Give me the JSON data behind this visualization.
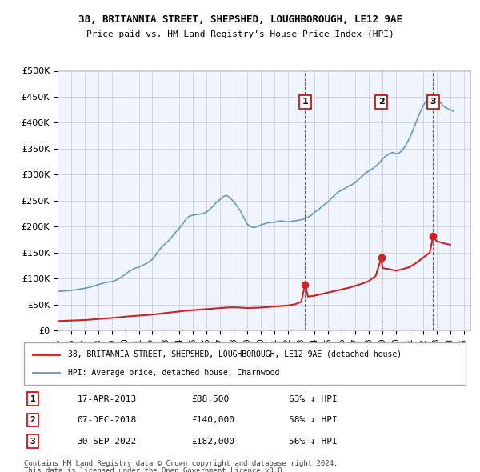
{
  "title1": "38, BRITANNIA STREET, SHEPSHED, LOUGHBOROUGH, LE12 9AE",
  "title2": "Price paid vs. HM Land Registry's House Price Index (HPI)",
  "ylabel_ticks": [
    "£0",
    "£50K",
    "£100K",
    "£150K",
    "£200K",
    "£250K",
    "£300K",
    "£350K",
    "£400K",
    "£450K",
    "£500K"
  ],
  "ylim": [
    0,
    500000
  ],
  "xlim_start": 1995.0,
  "xlim_end": 2025.5,
  "hpi_color": "#6699cc",
  "price_color": "#cc2222",
  "dashed_line_color": "#cc0000",
  "background_color": "#f0f4ff",
  "grid_color": "#cccccc",
  "legend_label_red": "38, BRITANNIA STREET, SHEPSHED, LOUGHBOROUGH, LE12 9AE (detached house)",
  "legend_label_blue": "HPI: Average price, detached house, Charnwood",
  "transactions": [
    {
      "id": 1,
      "date": "17-APR-2013",
      "price": 88500,
      "pct": "63%",
      "year": 2013.29
    },
    {
      "id": 2,
      "date": "07-DEC-2018",
      "price": 140000,
      "pct": "58%",
      "year": 2018.92
    },
    {
      "id": 3,
      "date": "30-SEP-2022",
      "price": 182000,
      "pct": "56%",
      "year": 2022.75
    }
  ],
  "footnote1": "Contains HM Land Registry data © Crown copyright and database right 2024.",
  "footnote2": "This data is licensed under the Open Government Licence v3.0.",
  "hpi_x": [
    1995.0,
    1995.25,
    1995.5,
    1995.75,
    1996.0,
    1996.25,
    1996.5,
    1996.75,
    1997.0,
    1997.25,
    1997.5,
    1997.75,
    1998.0,
    1998.25,
    1998.5,
    1998.75,
    1999.0,
    1999.25,
    1999.5,
    1999.75,
    2000.0,
    2000.25,
    2000.5,
    2000.75,
    2001.0,
    2001.25,
    2001.5,
    2001.75,
    2002.0,
    2002.25,
    2002.5,
    2002.75,
    2003.0,
    2003.25,
    2003.5,
    2003.75,
    2004.0,
    2004.25,
    2004.5,
    2004.75,
    2005.0,
    2005.25,
    2005.5,
    2005.75,
    2006.0,
    2006.25,
    2006.5,
    2006.75,
    2007.0,
    2007.25,
    2007.5,
    2007.75,
    2008.0,
    2008.25,
    2008.5,
    2008.75,
    2009.0,
    2009.25,
    2009.5,
    2009.75,
    2010.0,
    2010.25,
    2010.5,
    2010.75,
    2011.0,
    2011.25,
    2011.5,
    2011.75,
    2012.0,
    2012.25,
    2012.5,
    2012.75,
    2013.0,
    2013.25,
    2013.5,
    2013.75,
    2014.0,
    2014.25,
    2014.5,
    2014.75,
    2015.0,
    2015.25,
    2015.5,
    2015.75,
    2016.0,
    2016.25,
    2016.5,
    2016.75,
    2017.0,
    2017.25,
    2017.5,
    2017.75,
    2018.0,
    2018.25,
    2018.5,
    2018.75,
    2019.0,
    2019.25,
    2019.5,
    2019.75,
    2020.0,
    2020.25,
    2020.5,
    2020.75,
    2021.0,
    2021.25,
    2021.5,
    2021.75,
    2022.0,
    2022.25,
    2022.5,
    2022.75,
    2023.0,
    2023.25,
    2023.5,
    2023.75,
    2024.0,
    2024.25
  ],
  "hpi_y": [
    75000,
    75500,
    76000,
    76500,
    77000,
    78000,
    79000,
    80000,
    81000,
    82500,
    84000,
    86000,
    88000,
    90000,
    92000,
    93000,
    94000,
    96000,
    99000,
    103000,
    108000,
    113000,
    117000,
    120000,
    122000,
    125000,
    128000,
    132000,
    137000,
    145000,
    155000,
    162000,
    168000,
    174000,
    182000,
    190000,
    197000,
    205000,
    215000,
    220000,
    222000,
    223000,
    224000,
    225000,
    228000,
    233000,
    240000,
    247000,
    252000,
    258000,
    260000,
    255000,
    248000,
    240000,
    230000,
    218000,
    205000,
    200000,
    198000,
    200000,
    203000,
    205000,
    207000,
    208000,
    208000,
    210000,
    211000,
    210000,
    209000,
    210000,
    211000,
    212000,
    213000,
    215000,
    218000,
    222000,
    228000,
    232000,
    238000,
    243000,
    248000,
    255000,
    261000,
    267000,
    270000,
    274000,
    278000,
    281000,
    285000,
    291000,
    297000,
    303000,
    307000,
    311000,
    316000,
    322000,
    330000,
    336000,
    340000,
    343000,
    340000,
    342000,
    348000,
    358000,
    370000,
    385000,
    402000,
    418000,
    432000,
    443000,
    450000,
    452000,
    448000,
    440000,
    432000,
    428000,
    425000,
    422000
  ],
  "price_x": [
    1995.0,
    1995.5,
    1996.0,
    1996.5,
    1997.0,
    1997.5,
    1998.0,
    1998.5,
    1999.0,
    1999.5,
    2000.0,
    2000.5,
    2001.0,
    2001.5,
    2002.0,
    2002.5,
    2003.0,
    2003.5,
    2004.0,
    2004.5,
    2005.0,
    2005.5,
    2006.0,
    2006.5,
    2007.0,
    2007.5,
    2008.0,
    2008.5,
    2009.0,
    2009.5,
    2010.0,
    2010.5,
    2011.0,
    2011.5,
    2012.0,
    2012.5,
    2013.0,
    2013.29,
    2013.5,
    2014.0,
    2014.5,
    2015.0,
    2015.5,
    2016.0,
    2016.5,
    2017.0,
    2017.5,
    2018.0,
    2018.5,
    2018.92,
    2019.0,
    2019.5,
    2020.0,
    2020.5,
    2021.0,
    2021.5,
    2022.0,
    2022.5,
    2022.75,
    2023.0,
    2023.5,
    2024.0
  ],
  "price_y": [
    18000,
    18500,
    19000,
    19500,
    20000,
    21000,
    22000,
    23000,
    24000,
    25000,
    26500,
    27500,
    28500,
    29500,
    30500,
    32000,
    33500,
    35000,
    36500,
    38000,
    39000,
    40000,
    41000,
    42000,
    43000,
    44000,
    44500,
    44000,
    43000,
    43500,
    44000,
    45000,
    46000,
    47000,
    48000,
    50000,
    55000,
    88500,
    65000,
    67000,
    70000,
    73000,
    76000,
    79000,
    82000,
    86000,
    90000,
    95000,
    105000,
    140000,
    120000,
    118000,
    115000,
    118000,
    122000,
    130000,
    140000,
    150000,
    182000,
    172000,
    168000,
    165000
  ]
}
